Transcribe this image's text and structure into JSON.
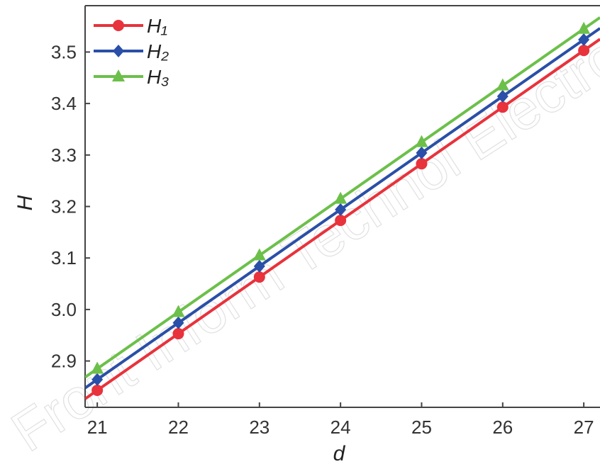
{
  "watermark": "Front Inform Technol Electron Eng",
  "chart_data": {
    "type": "line",
    "xlabel": "d",
    "ylabel": "H",
    "xlim": [
      20.85,
      27.2
    ],
    "ylim": [
      2.81,
      3.59
    ],
    "xticks": [
      21,
      22,
      23,
      24,
      25,
      26,
      27
    ],
    "yticks": [
      2.9,
      3.0,
      3.1,
      3.2,
      3.3,
      3.4,
      3.5
    ],
    "ytick_labels": [
      "2.9",
      "3.0",
      "3.1",
      "3.2",
      "3.3",
      "3.4",
      "3.5"
    ],
    "legend_position": "top-left",
    "x": [
      21,
      22,
      23,
      24,
      25,
      26,
      27
    ],
    "series": [
      {
        "name": "H₁",
        "marker": "circle",
        "color": "#e8323c",
        "values": [
          2.843,
          2.953,
          3.063,
          3.173,
          3.283,
          3.393,
          3.503
        ]
      },
      {
        "name": "H₂",
        "marker": "diamond",
        "color": "#2a4fa8",
        "values": [
          2.864,
          2.974,
          3.084,
          3.194,
          3.304,
          3.414,
          3.524
        ]
      },
      {
        "name": "H₃",
        "marker": "triangle",
        "color": "#6cc04a",
        "values": [
          2.885,
          2.995,
          3.105,
          3.215,
          3.325,
          3.435,
          3.545
        ]
      }
    ]
  }
}
